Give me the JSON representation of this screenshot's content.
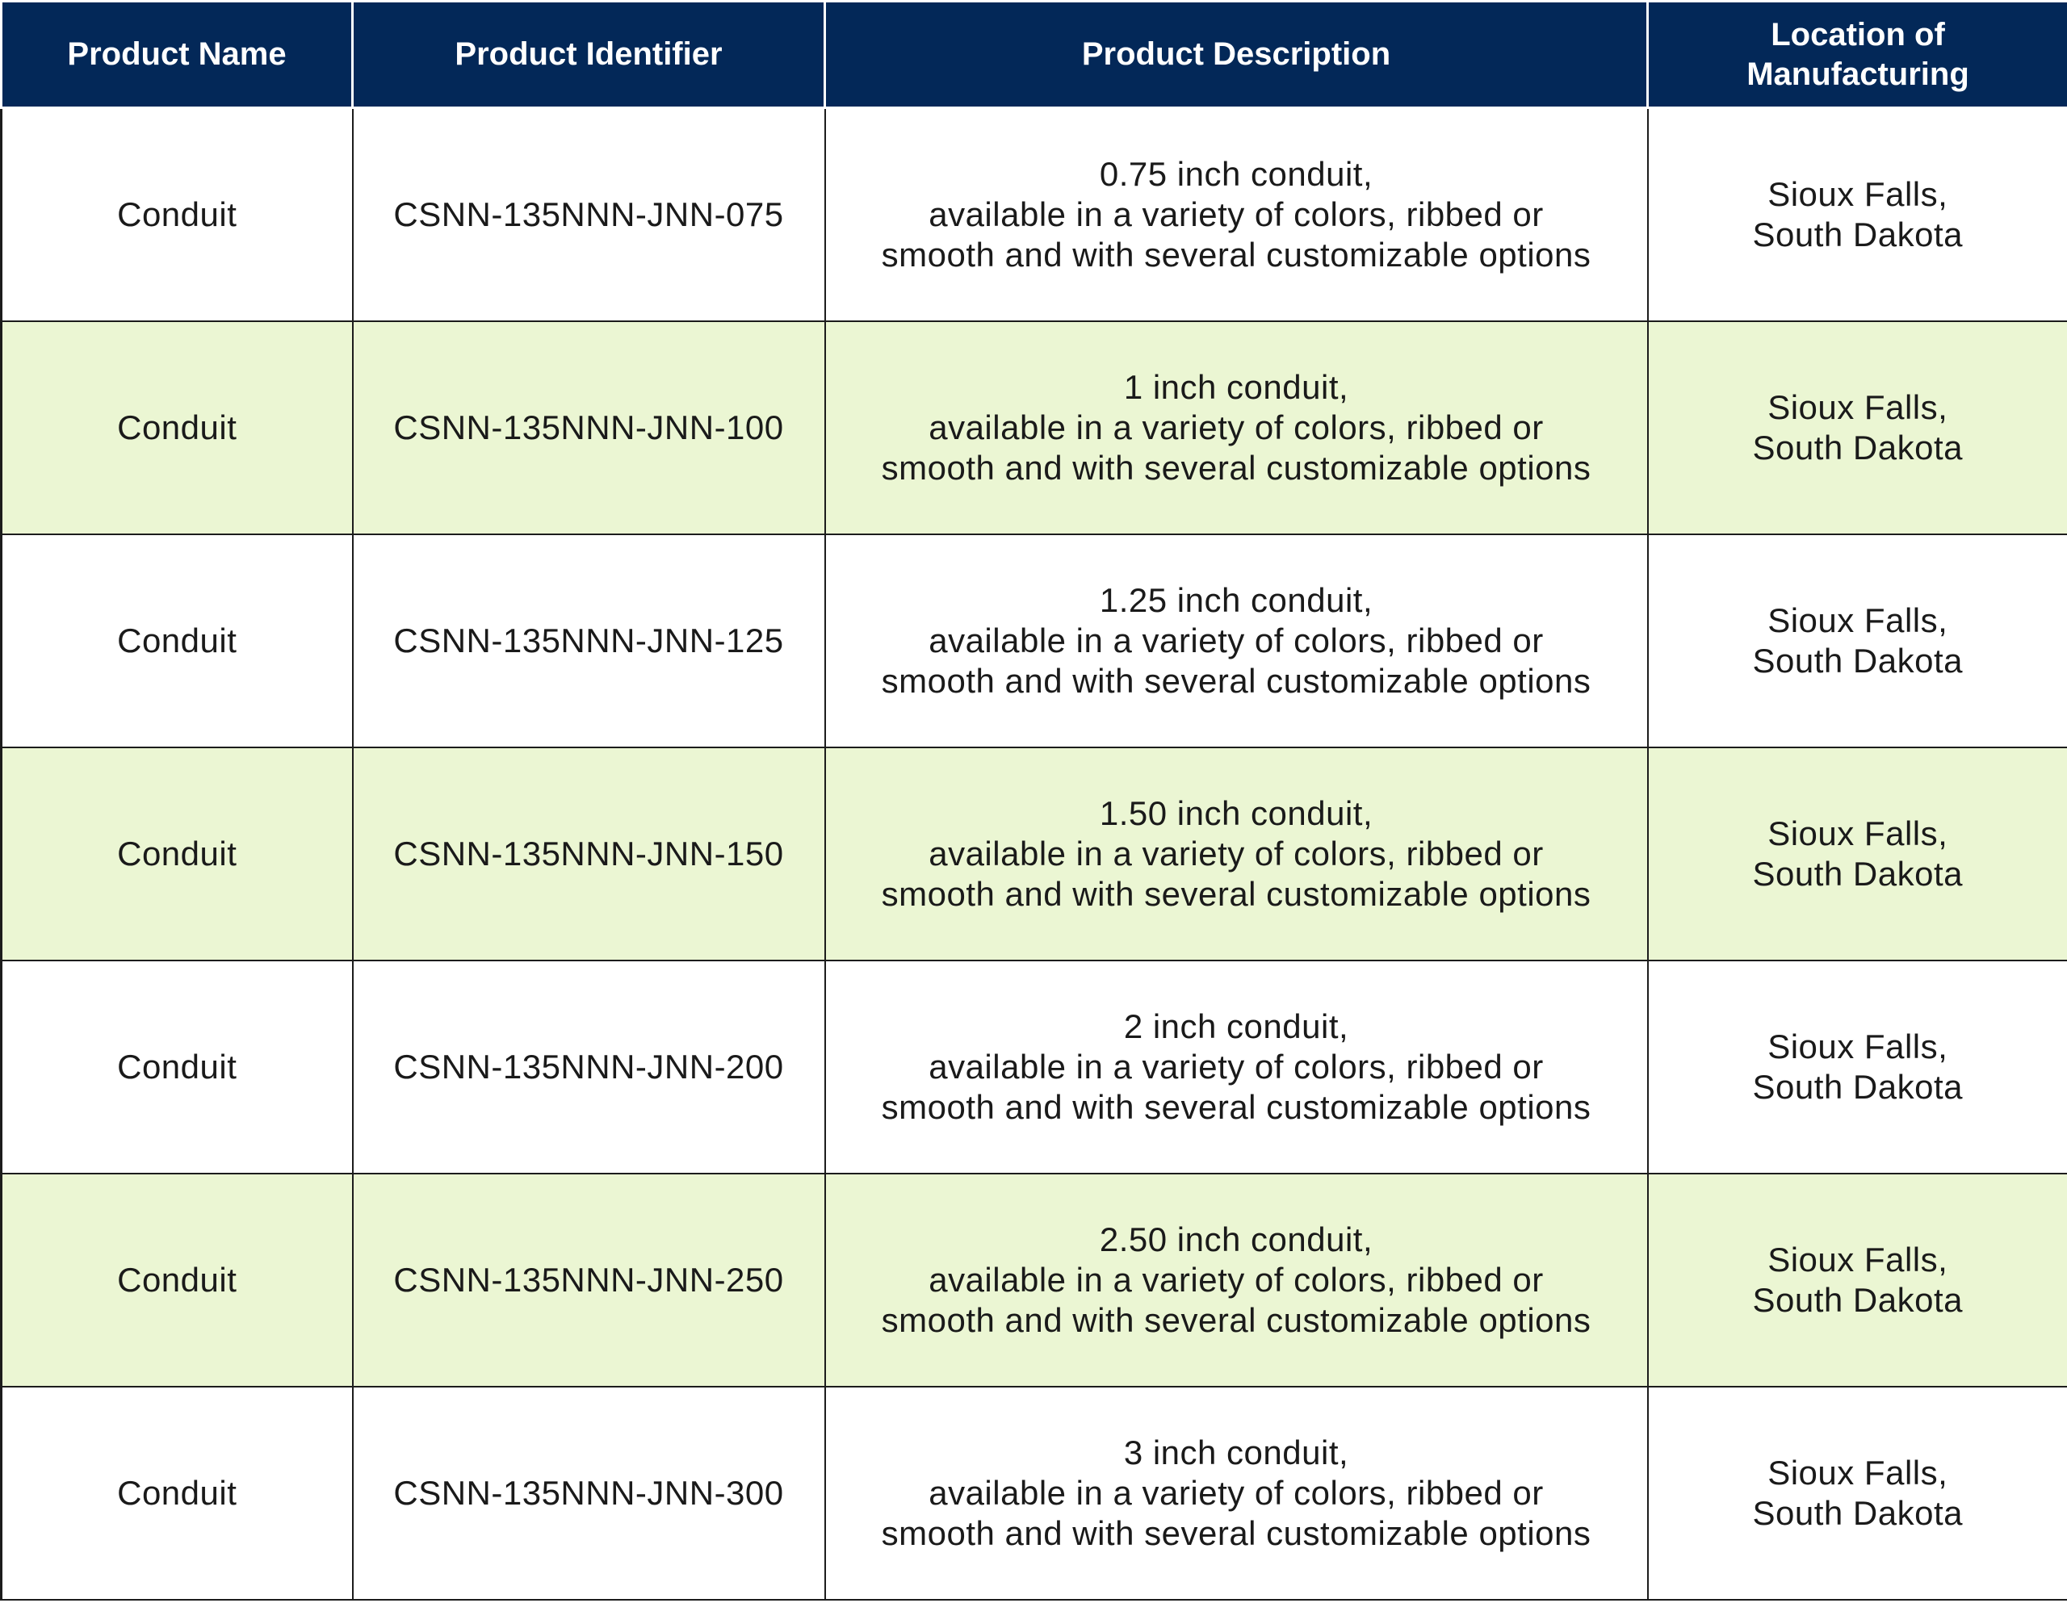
{
  "colors": {
    "header_background": "#032858",
    "header_text": "#ffffff",
    "alt_row_background": "#ebf6d3",
    "row_background": "#ffffff",
    "border": "#1c1c1c"
  },
  "table": {
    "headers": [
      {
        "lines": [
          "Product Name"
        ]
      },
      {
        "lines": [
          "Product Identifier"
        ]
      },
      {
        "lines": [
          "Product Description"
        ]
      },
      {
        "lines": [
          "Location of",
          "Manufacturing"
        ]
      }
    ],
    "rows": [
      {
        "name": "Conduit",
        "identifier": "CSNN-135NNN-JNN-075",
        "description": [
          "0.75 inch conduit,",
          "available in a variety of colors, ribbed or",
          "smooth and with several customizable options"
        ],
        "location": [
          "Sioux Falls,",
          "South Dakota"
        ]
      },
      {
        "name": "Conduit",
        "identifier": "CSNN-135NNN-JNN-100",
        "description": [
          "1 inch conduit,",
          "available in a variety of colors, ribbed or",
          "smooth and with several customizable options"
        ],
        "location": [
          "Sioux Falls,",
          "South Dakota"
        ]
      },
      {
        "name": "Conduit",
        "identifier": "CSNN-135NNN-JNN-125",
        "description": [
          "1.25 inch conduit,",
          "available in a variety of colors, ribbed or",
          "smooth and with several customizable options"
        ],
        "location": [
          "Sioux Falls,",
          "South Dakota"
        ]
      },
      {
        "name": "Conduit",
        "identifier": "CSNN-135NNN-JNN-150",
        "description": [
          "1.50 inch conduit,",
          "available in a variety of colors, ribbed or",
          "smooth and with several customizable options"
        ],
        "location": [
          "Sioux Falls,",
          "South Dakota"
        ]
      },
      {
        "name": "Conduit",
        "identifier": "CSNN-135NNN-JNN-200",
        "description": [
          "2 inch conduit,",
          "available in a variety of colors, ribbed or",
          "smooth and with several customizable options"
        ],
        "location": [
          "Sioux Falls,",
          "South Dakota"
        ]
      },
      {
        "name": "Conduit",
        "identifier": "CSNN-135NNN-JNN-250",
        "description": [
          "2.50 inch conduit,",
          "available in a variety of colors, ribbed or",
          "smooth and with several customizable options"
        ],
        "location": [
          "Sioux Falls,",
          "South Dakota"
        ]
      },
      {
        "name": "Conduit",
        "identifier": "CSNN-135NNN-JNN-300",
        "description": [
          "3 inch conduit,",
          "available in a variety of colors, ribbed or",
          "smooth and with several customizable options"
        ],
        "location": [
          "Sioux Falls,",
          "South Dakota"
        ]
      }
    ]
  }
}
